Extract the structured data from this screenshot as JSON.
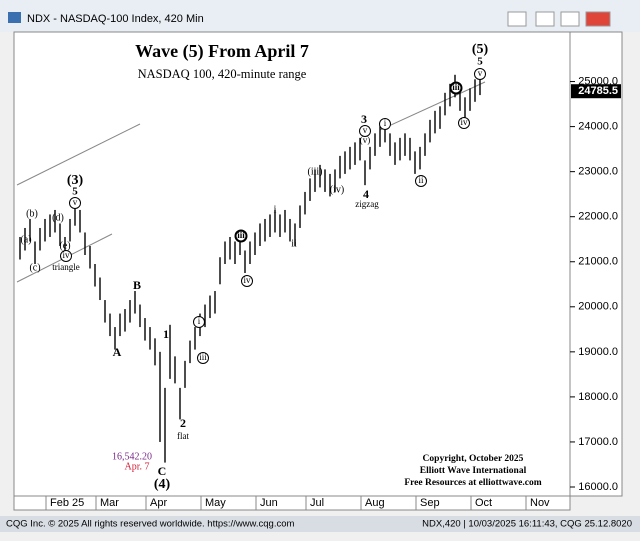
{
  "window_title": "NDX - NASDAQ-100 Index, 420 Min",
  "footer": {
    "left": "CQG Inc. © 2025 All rights reserved worldwide. https://www.cqg.com",
    "right": "NDX,420 | 10/03/2025 16:11:43, CQG 25.12.8020"
  },
  "chart_data": {
    "type": "range-bar",
    "title": "Wave (5) From April 7",
    "subtitle": "NASDAQ 100, 420-minute range",
    "copyright": [
      "Copyright, October 2025",
      "Elliott Wave International",
      "Free Resources at elliottwave.com"
    ],
    "color": "#000000",
    "ylim": [
      15800,
      26100
    ],
    "yticks": [
      {
        "value": 16000,
        "label": "16000.0"
      },
      {
        "value": 17000,
        "label": "17000.0"
      },
      {
        "value": 18000,
        "label": "18000.0"
      },
      {
        "value": 19000,
        "label": "19000.0"
      },
      {
        "value": 20000,
        "label": "20000.0"
      },
      {
        "value": 21000,
        "label": "21000.0"
      },
      {
        "value": 22000,
        "label": "22000.0"
      },
      {
        "value": 23000,
        "label": "23000.0"
      },
      {
        "value": 24000,
        "label": "24000.0"
      },
      {
        "value": 25000,
        "label": "25000.0"
      }
    ],
    "last_price": 24785.5,
    "grid": false,
    "categories": [
      null,
      null,
      null,
      null,
      null,
      null,
      "Feb 25",
      null,
      null,
      null,
      null,
      null,
      null,
      null,
      null,
      null,
      "Mar",
      null,
      null,
      null,
      null,
      null,
      null,
      null,
      null,
      null,
      "Apr",
      null,
      null,
      null,
      null,
      null,
      null,
      null,
      null,
      null,
      null,
      "May",
      null,
      null,
      null,
      null,
      null,
      null,
      null,
      null,
      null,
      null,
      "Jun",
      null,
      null,
      null,
      null,
      null,
      null,
      null,
      null,
      null,
      "Jul",
      null,
      null,
      null,
      null,
      null,
      null,
      null,
      null,
      null,
      null,
      "Aug",
      null,
      null,
      null,
      null,
      null,
      null,
      null,
      null,
      null,
      null,
      "Sep",
      null,
      null,
      null,
      null,
      null,
      null,
      null,
      null,
      null,
      null,
      "Oct",
      null,
      null,
      null,
      null,
      null,
      null,
      null,
      null,
      null,
      null,
      "Nov"
    ],
    "high": [
      21550,
      21750,
      21950,
      21450,
      21750,
      21950,
      22050,
      22150,
      21850,
      21550,
      21950,
      22300,
      22150,
      21650,
      21350,
      20950,
      20650,
      20150,
      19850,
      19550,
      19850,
      19950,
      20150,
      20350,
      20050,
      19750,
      19550,
      19300,
      19000,
      18200,
      19600,
      18900,
      18200,
      18800,
      19250,
      19550,
      19850,
      20050,
      20250,
      20350,
      21100,
      21450,
      21550,
      21450,
      21650,
      21250,
      21450,
      21650,
      21850,
      21950,
      22050,
      22150,
      22050,
      22150,
      21950,
      21850,
      22250,
      22550,
      22850,
      23050,
      23150,
      23050,
      22950,
      23050,
      23350,
      23450,
      23550,
      23650,
      23750,
      23250,
      23550,
      23850,
      24050,
      24150,
      23850,
      23650,
      23750,
      23850,
      23750,
      23450,
      23550,
      23850,
      24150,
      24350,
      24450,
      24750,
      24950,
      25150,
      24950,
      24650,
      24850,
      25050,
      25100,
      null,
      null,
      null,
      null,
      null,
      null,
      null,
      null,
      null,
      null
    ],
    "low": [
      21050,
      21250,
      21450,
      20950,
      21250,
      21450,
      21550,
      21650,
      21350,
      21050,
      21450,
      21800,
      21650,
      21150,
      20850,
      20450,
      20150,
      19650,
      19350,
      19050,
      19350,
      19450,
      19650,
      19850,
      19550,
      19250,
      19050,
      18700,
      17000,
      16542,
      18400,
      18300,
      17500,
      18200,
      18750,
      19050,
      19350,
      19550,
      19750,
      19850,
      20500,
      20950,
      21050,
      20950,
      21150,
      20750,
      20950,
      21150,
      21350,
      21450,
      21550,
      21650,
      21550,
      21650,
      21450,
      21350,
      21750,
      22050,
      22350,
      22550,
      22650,
      22550,
      22450,
      22550,
      22850,
      22950,
      23050,
      23150,
      23250,
      22700,
      23050,
      23350,
      23550,
      23650,
      23350,
      23150,
      23250,
      23350,
      23250,
      22950,
      23050,
      23350,
      23650,
      23850,
      23950,
      24250,
      24450,
      24650,
      24350,
      24150,
      24350,
      24550,
      24700,
      null,
      null,
      null,
      null,
      null,
      null,
      null,
      null,
      null,
      null
    ],
    "annotations": [
      "(5)",
      "5",
      "v",
      "(3)",
      "5",
      "v",
      "(b)",
      "(d)",
      "(a)",
      "(e)",
      "(c)",
      "iv",
      "triangle",
      "B",
      "A",
      "1",
      "i",
      "iii",
      "2",
      "flat",
      "C",
      "(4)",
      "16,542.20",
      "Apr. 7",
      "iii",
      "iv",
      "i",
      "ii",
      "(iii)",
      "(iv)",
      "3",
      "v",
      "(v)",
      "4",
      "zigzag",
      "i",
      "ii",
      "iii",
      "iv"
    ]
  }
}
